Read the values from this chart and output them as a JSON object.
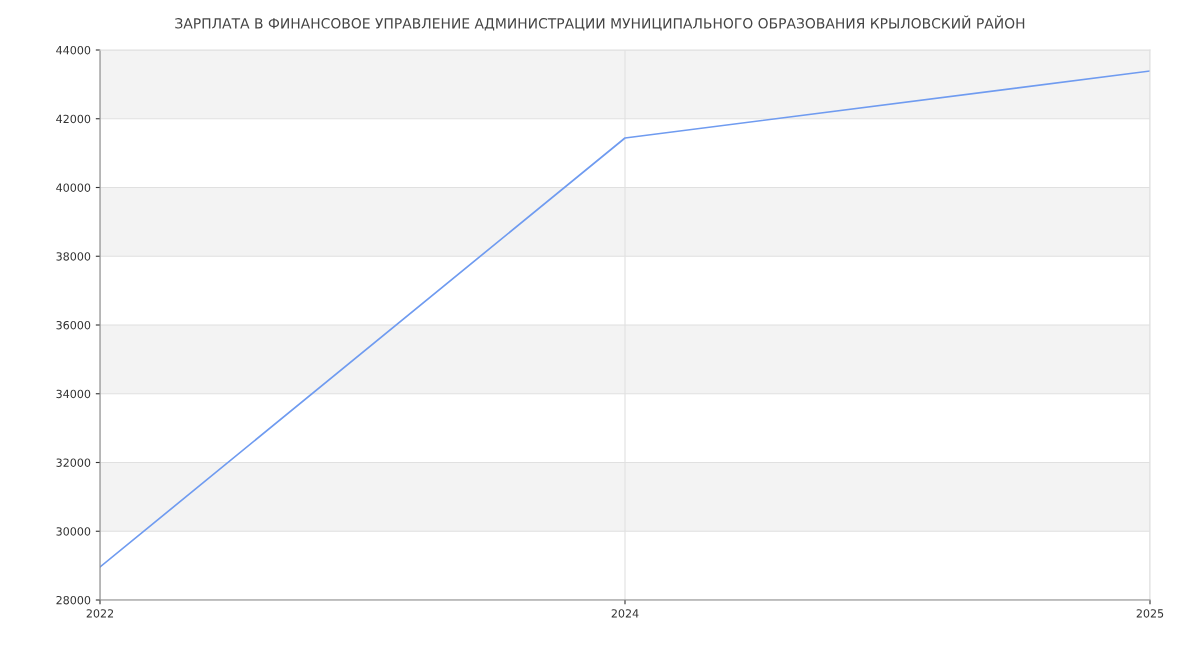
{
  "chart_data": {
    "type": "line",
    "title": "ЗАРПЛАТА В ФИНАНСОВОЕ УПРАВЛЕНИЕ АДМИНИСТРАЦИИ МУНИЦИПАЛЬНОГО ОБРАЗОВАНИЯ КРЫЛОВСКИЙ РАЙОН",
    "categories": [
      "2022",
      "2024",
      "2025"
    ],
    "series": [
      {
        "color": "#6f9bf0",
        "values": [
          28960,
          41440,
          43390
        ]
      }
    ],
    "ylim": [
      28000,
      44000
    ],
    "yticks": [
      28000,
      30000,
      32000,
      34000,
      36000,
      38000,
      40000,
      42000,
      44000
    ],
    "grid": true,
    "marker": "none",
    "line_style": "solid"
  }
}
